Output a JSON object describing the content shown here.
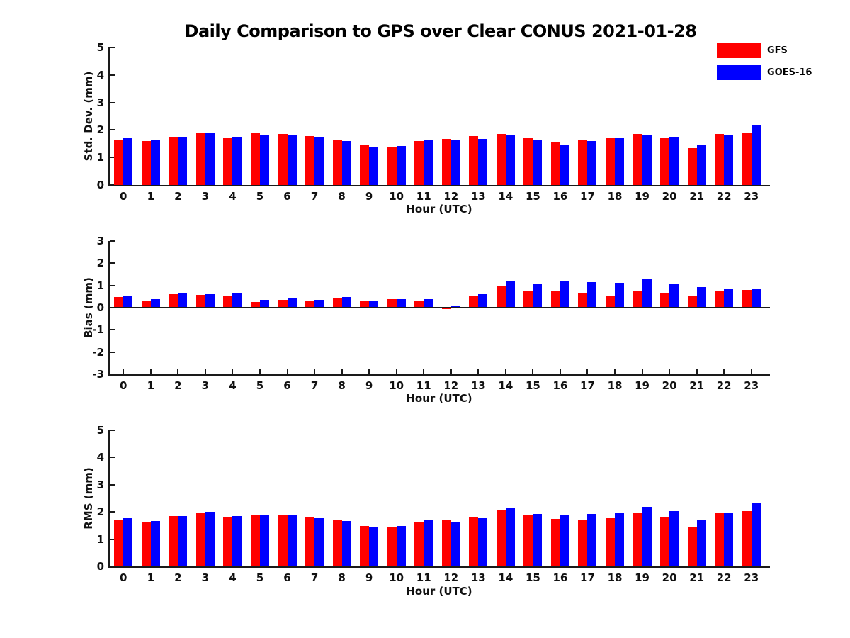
{
  "title": "Daily Comparison to GPS over Clear CONUS 2021-01-28",
  "legend": [
    {
      "label": "GFS",
      "color": "#ff0000"
    },
    {
      "label": "GOES-16",
      "color": "#0000ff"
    }
  ],
  "colors": {
    "gfs": "#ff0000",
    "goes16": "#0000ff",
    "axis": "#1a1a1a",
    "text": "#000000"
  },
  "chart_data": [
    {
      "type": "bar",
      "ylabel": "Std. Dev. (mm)",
      "xlabel": "Hour (UTC)",
      "ylim": [
        0,
        5
      ],
      "yticks": [
        0,
        1,
        2,
        3,
        4,
        5
      ],
      "grid": false,
      "legend_position": "top-right",
      "categories": [
        "0",
        "1",
        "2",
        "3",
        "4",
        "5",
        "6",
        "7",
        "8",
        "9",
        "10",
        "11",
        "12",
        "13",
        "14",
        "15",
        "16",
        "17",
        "18",
        "19",
        "20",
        "21",
        "22",
        "23"
      ],
      "series": [
        {
          "name": "GFS",
          "color": "#ff0000",
          "values": [
            1.66,
            1.61,
            1.75,
            1.9,
            1.72,
            1.87,
            1.86,
            1.78,
            1.66,
            1.45,
            1.4,
            1.6,
            1.68,
            1.78,
            1.86,
            1.71,
            1.54,
            1.62,
            1.72,
            1.86,
            1.71,
            1.34,
            1.86,
            1.9
          ]
        },
        {
          "name": "GOES-16",
          "color": "#0000ff",
          "values": [
            1.69,
            1.64,
            1.75,
            1.9,
            1.74,
            1.84,
            1.81,
            1.74,
            1.6,
            1.38,
            1.43,
            1.63,
            1.66,
            1.67,
            1.8,
            1.66,
            1.45,
            1.6,
            1.7,
            1.8,
            1.74,
            1.47,
            1.81,
            2.2
          ]
        }
      ]
    },
    {
      "type": "bar",
      "ylabel": "Bias (mm)",
      "xlabel": "Hour (UTC)",
      "ylim": [
        -3,
        3
      ],
      "yticks": [
        -3,
        -2,
        -1,
        0,
        1,
        2,
        3
      ],
      "zero_line": true,
      "grid": false,
      "categories": [
        "0",
        "1",
        "2",
        "3",
        "4",
        "5",
        "6",
        "7",
        "8",
        "9",
        "10",
        "11",
        "12",
        "13",
        "14",
        "15",
        "16",
        "17",
        "18",
        "19",
        "20",
        "21",
        "22",
        "23"
      ],
      "series": [
        {
          "name": "GFS",
          "color": "#ff0000",
          "values": [
            0.47,
            0.3,
            0.6,
            0.58,
            0.54,
            0.27,
            0.36,
            0.28,
            0.42,
            0.31,
            0.37,
            0.3,
            -0.06,
            0.5,
            0.97,
            0.72,
            0.78,
            0.64,
            0.54,
            0.77,
            0.63,
            0.55,
            0.72,
            0.8
          ]
        },
        {
          "name": "GOES-16",
          "color": "#0000ff",
          "values": [
            0.53,
            0.38,
            0.65,
            0.62,
            0.63,
            0.36,
            0.44,
            0.35,
            0.48,
            0.33,
            0.39,
            0.37,
            0.08,
            0.6,
            1.22,
            1.04,
            1.2,
            1.14,
            1.11,
            1.28,
            1.1,
            0.91,
            0.82,
            0.82
          ]
        }
      ]
    },
    {
      "type": "bar",
      "ylabel": "RMS (mm)",
      "xlabel": "Hour (UTC)",
      "ylim": [
        0,
        5
      ],
      "yticks": [
        0,
        1,
        2,
        3,
        4,
        5
      ],
      "grid": false,
      "categories": [
        "0",
        "1",
        "2",
        "3",
        "4",
        "5",
        "6",
        "7",
        "8",
        "9",
        "10",
        "11",
        "12",
        "13",
        "14",
        "15",
        "16",
        "17",
        "18",
        "19",
        "20",
        "21",
        "22",
        "23"
      ],
      "series": [
        {
          "name": "GFS",
          "color": "#ff0000",
          "values": [
            1.72,
            1.63,
            1.85,
            1.98,
            1.8,
            1.88,
            1.91,
            1.82,
            1.68,
            1.49,
            1.46,
            1.64,
            1.68,
            1.83,
            2.09,
            1.87,
            1.74,
            1.72,
            1.78,
            1.98,
            1.8,
            1.44,
            1.98,
            2.03
          ]
        },
        {
          "name": "GOES-16",
          "color": "#0000ff",
          "values": [
            1.77,
            1.67,
            1.85,
            2.01,
            1.84,
            1.88,
            1.87,
            1.78,
            1.66,
            1.44,
            1.49,
            1.7,
            1.65,
            1.76,
            2.17,
            1.94,
            1.87,
            1.94,
            1.98,
            2.2,
            2.04,
            1.71,
            1.96,
            2.34
          ]
        }
      ]
    }
  ]
}
